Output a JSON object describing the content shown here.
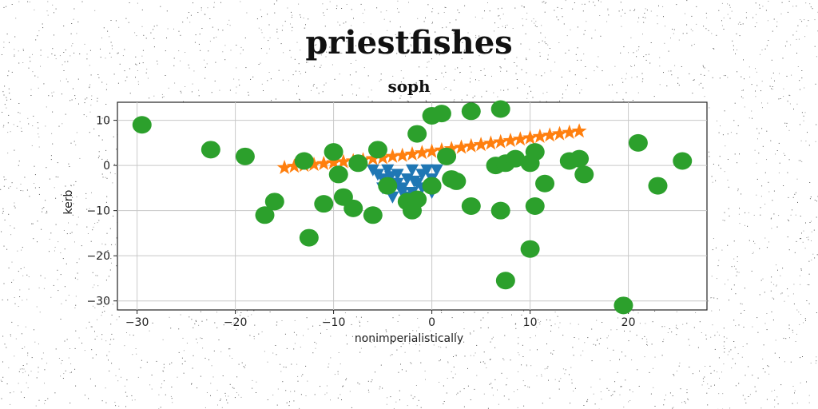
{
  "chart_data": {
    "type": "scatter",
    "title": "priestfishes",
    "subtitle": "soph",
    "xlabel": "nonimperialistically",
    "ylabel": "kerb",
    "xlim": [
      -32,
      28
    ],
    "ylim": [
      -32,
      14
    ],
    "xticks": [
      -30,
      -20,
      -10,
      0,
      10,
      20
    ],
    "yticks": [
      10,
      0,
      -10,
      -20,
      -30
    ],
    "grid": true,
    "series": [
      {
        "marker": "triangle",
        "color": "#1f77b4",
        "points": [
          [
            -6,
            -1
          ],
          [
            -5.5,
            -2
          ],
          [
            -5,
            -3
          ],
          [
            -4.5,
            -1
          ],
          [
            -4,
            -4
          ],
          [
            -3.5,
            -2
          ],
          [
            -3,
            -5
          ],
          [
            -2.5,
            -3
          ],
          [
            -2,
            -1
          ],
          [
            -1.5,
            -4
          ],
          [
            -1,
            -2
          ],
          [
            -0.5,
            -1
          ],
          [
            0,
            -3
          ],
          [
            0.5,
            -1
          ],
          [
            -3,
            -6
          ],
          [
            -4,
            -7
          ],
          [
            -5,
            -5
          ],
          [
            -2,
            -6
          ],
          [
            -1,
            -5
          ],
          [
            0,
            -6
          ],
          [
            -2.5,
            -7
          ],
          [
            -3.5,
            -4
          ],
          [
            -1.8,
            -3.5
          ],
          [
            -4.2,
            -2.5
          ]
        ]
      },
      {
        "marker": "star",
        "color": "#ff7f0e",
        "points": [
          [
            -15,
            -0.5
          ],
          [
            -13,
            0
          ],
          [
            -11,
            0.4
          ],
          [
            -9,
            0.8
          ],
          [
            -7,
            1.2
          ],
          [
            -5,
            1.7
          ],
          [
            -3,
            2.2
          ],
          [
            -1,
            2.8
          ],
          [
            1,
            3.4
          ],
          [
            3,
            4.0
          ],
          [
            5,
            4.6
          ],
          [
            7,
            5.2
          ],
          [
            9,
            5.8
          ],
          [
            11,
            6.4
          ],
          [
            13,
            7.0
          ],
          [
            15,
            7.6
          ],
          [
            -14,
            -0.2
          ],
          [
            -12,
            0.2
          ],
          [
            -10,
            0.6
          ],
          [
            -8,
            1.0
          ],
          [
            -6,
            1.5
          ],
          [
            -4,
            2.0
          ],
          [
            -2,
            2.5
          ],
          [
            0,
            3.1
          ],
          [
            2,
            3.7
          ],
          [
            4,
            4.3
          ],
          [
            6,
            4.9
          ],
          [
            8,
            5.5
          ],
          [
            10,
            6.1
          ],
          [
            12,
            6.7
          ],
          [
            14,
            7.3
          ]
        ]
      },
      {
        "marker": "circle",
        "color": "#2ca02c",
        "points": [
          [
            -29.5,
            9
          ],
          [
            -22.5,
            3.5
          ],
          [
            -19,
            2
          ],
          [
            -17,
            -11
          ],
          [
            -16,
            -8
          ],
          [
            -13,
            1
          ],
          [
            -12.5,
            -16
          ],
          [
            -11,
            -8.5
          ],
          [
            -10,
            3
          ],
          [
            -9.5,
            -2
          ],
          [
            -9,
            -7
          ],
          [
            -8,
            -9.5
          ],
          [
            -7.5,
            0.5
          ],
          [
            -6,
            -11
          ],
          [
            -5.5,
            3.5
          ],
          [
            -4.5,
            -4.5
          ],
          [
            -2.5,
            -8
          ],
          [
            -2,
            -10
          ],
          [
            -1.5,
            -7.5
          ],
          [
            -1.5,
            7
          ],
          [
            0,
            -4.5
          ],
          [
            0,
            11
          ],
          [
            1,
            11.5
          ],
          [
            1.5,
            2
          ],
          [
            2,
            -3
          ],
          [
            2.5,
            -3.5
          ],
          [
            4,
            12
          ],
          [
            4,
            -9
          ],
          [
            6.5,
            0
          ],
          [
            7,
            -10
          ],
          [
            7,
            12.5
          ],
          [
            7.5,
            0.5
          ],
          [
            8.5,
            1.5
          ],
          [
            10,
            0.5
          ],
          [
            10,
            -18.5
          ],
          [
            10.5,
            3
          ],
          [
            10.5,
            -9
          ],
          [
            11.5,
            -4
          ],
          [
            7.5,
            -25.5
          ],
          [
            14,
            1
          ],
          [
            15,
            1.5
          ],
          [
            15.5,
            -2
          ],
          [
            19.5,
            -31
          ],
          [
            21,
            5
          ],
          [
            23,
            -4.5
          ],
          [
            25.5,
            1
          ]
        ]
      }
    ]
  }
}
